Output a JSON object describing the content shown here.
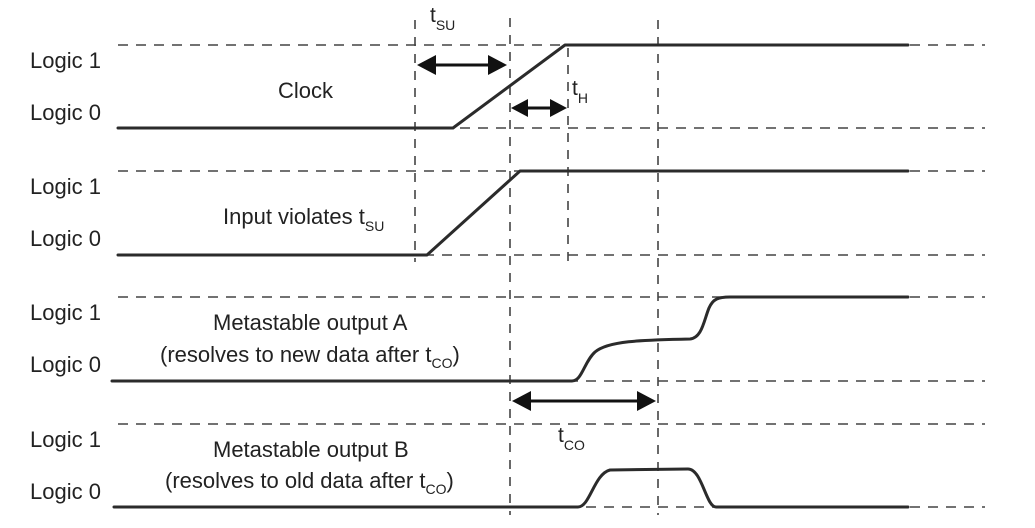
{
  "level_labels": {
    "high": "Logic 1",
    "low": "Logic 0"
  },
  "signals": [
    {
      "title": "Clock",
      "subtitle": ""
    },
    {
      "title_main": "Input violates t",
      "title_sub": "SU"
    },
    {
      "title": "Metastable output A",
      "note_main": "(resolves to new data after t",
      "note_sub": "CO",
      "note_end": ")"
    },
    {
      "title": "Metastable output B",
      "note_main": "(resolves to old data after t",
      "note_sub": "CO",
      "note_end": ")"
    }
  ],
  "timing_labels": {
    "tsu": {
      "main": "t",
      "sub": "SU"
    },
    "th": {
      "main": "t",
      "sub": "H"
    },
    "tco": {
      "main": "t",
      "sub": "CO"
    }
  },
  "colors": {
    "line": "#2b2b2b",
    "guide": "#444444",
    "text": "#222222"
  }
}
